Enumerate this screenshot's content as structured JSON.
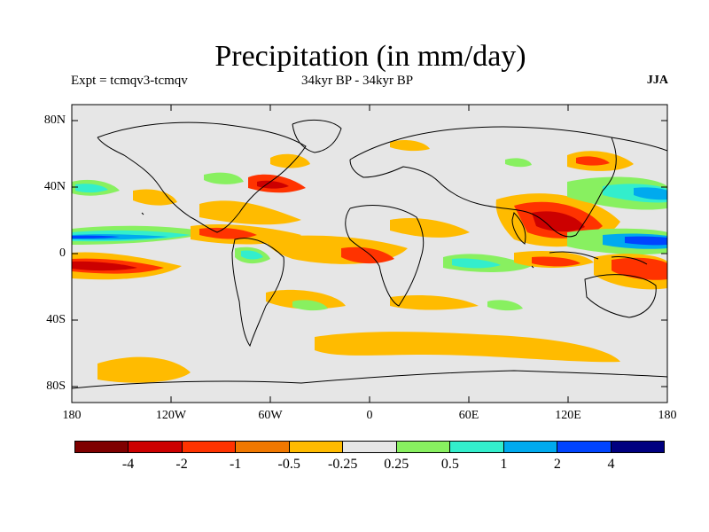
{
  "title": "Precipitation (in mm/day)",
  "subtitle_left": "Expt = tcmqv3-tcmqv",
  "subtitle_center": "34kyr BP - 34kyr BP",
  "season": "JJA",
  "lat_ticks": [
    "80N",
    "40N",
    "0",
    "40S",
    "80S"
  ],
  "lon_ticks": [
    "180",
    "120W",
    "60W",
    "0",
    "60E",
    "120E",
    "180"
  ],
  "colorbar": {
    "colors": [
      "#7f0000",
      "#cc0000",
      "#ff3300",
      "#f07800",
      "#ffbb00",
      "#e6e6e6",
      "#88f060",
      "#33eecc",
      "#00aaee",
      "#0044ff",
      "#000080"
    ],
    "labels": [
      "-4",
      "-2",
      "-1",
      "-0.5",
      "-0.25",
      "0.25",
      "0.5",
      "1",
      "2",
      "4"
    ]
  },
  "colors": {
    "background": "#e6e6e6",
    "coast": "#000000",
    "orange": "#ffbb00",
    "dark_orange": "#f07800",
    "red": "#ff3300",
    "dark_red": "#cc0000",
    "green": "#88f060",
    "teal": "#33eecc",
    "blue": "#00aaee",
    "deep_blue": "#0044ff"
  }
}
